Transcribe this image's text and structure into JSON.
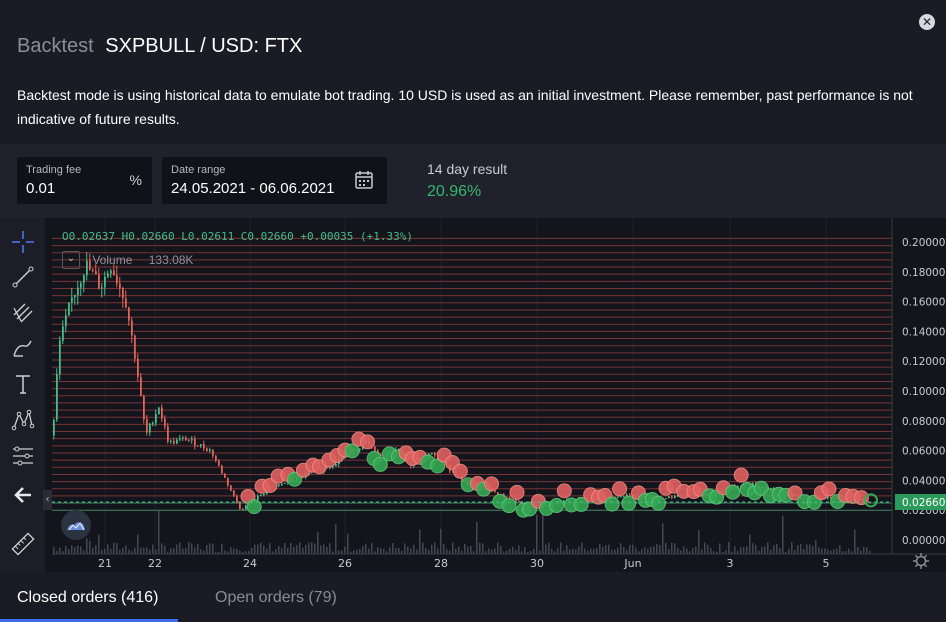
{
  "modal": {
    "title_prefix": "Backtest",
    "title": "SXPBULL / USD: FTX",
    "description": "Backtest mode is using historical data to emulate bot trading. 10 USD is used as an initial investment. Please remember, past performance is not indicative of future results."
  },
  "form": {
    "trading_fee_label": "Trading fee",
    "trading_fee_value": "0.01",
    "trading_fee_unit": "%",
    "date_range_label": "Date range",
    "date_range_value": "24.05.2021 - 06.06.2021",
    "result_label": "14 day result",
    "result_value": "20.96%"
  },
  "chart": {
    "ohlc_text": "O0.02637 H0.02660 L0.02611 C0.02660 +0.00035 (+1.33%)",
    "volume_label": "Volume",
    "volume_value": "133.08K",
    "current_price_label": "0.02660"
  },
  "chart_data": {
    "type": "candlestick",
    "price_axis": [
      "0.20000",
      "0.18000",
      "0.16000",
      "0.14000",
      "0.12000",
      "0.10000",
      "0.08000",
      "0.06000",
      "0.04000",
      "0.02000",
      "0.00000"
    ],
    "time_axis": [
      "21",
      "22",
      "24",
      "26",
      "28",
      "30",
      "Jun",
      "3",
      "5"
    ],
    "ylim": [
      0,
      0.2
    ],
    "current_price": 0.0266,
    "colors": {
      "up": "#44bd8a",
      "down": "#e0645a",
      "buy_marker": "#35a853",
      "sell_marker": "#e06060"
    }
  },
  "tabs": {
    "closed_orders": "Closed orders (416)",
    "open_orders": "Open orders (79)"
  }
}
